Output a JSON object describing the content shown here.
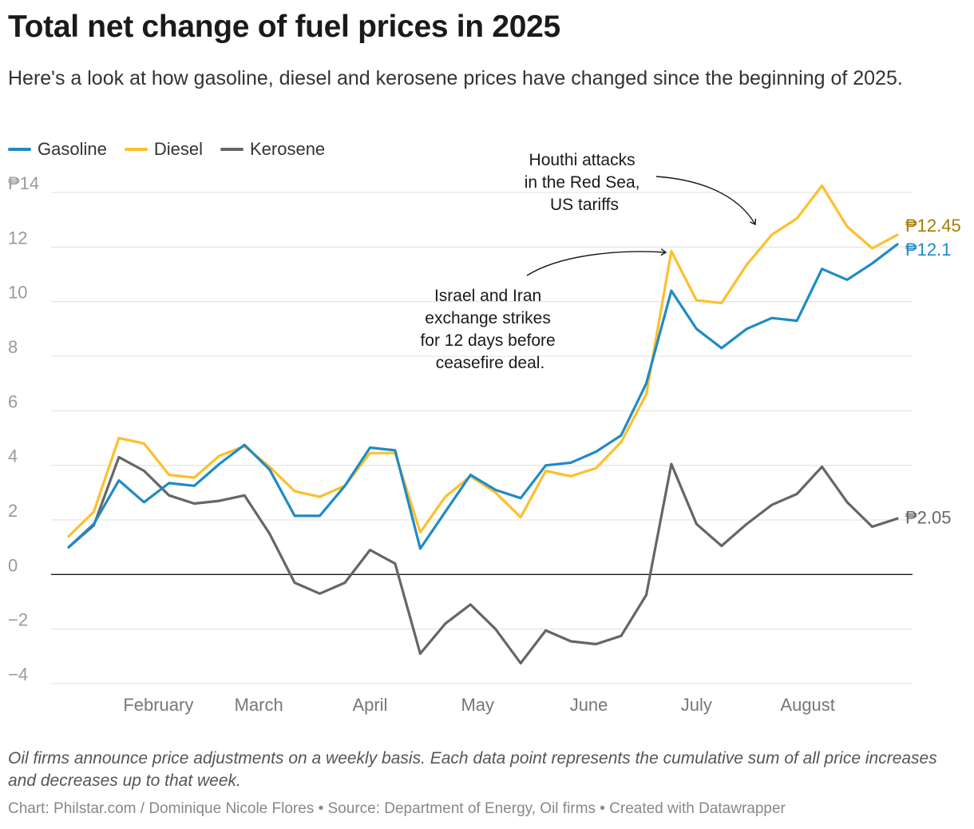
{
  "title": "Total net change of fuel prices in 2025",
  "subtitle": "Here's a look at how gasoline, diesel and kerosene prices have changed since the beginning of 2025.",
  "notes": "Oil firms announce price adjustments on a weekly basis. Each data point represents the cumulative sum of all price increases and decreases up to that week.",
  "credits": "Chart: Philstar.com / Dominique Nicole Flores • Source: Department of Energy, Oil firms • Created with Datawrapper",
  "chart_data": {
    "type": "line",
    "x": [
      "2025-01-07",
      "2025-01-14",
      "2025-01-21",
      "2025-01-28",
      "2025-02-04",
      "2025-02-11",
      "2025-02-18",
      "2025-02-25",
      "2025-03-04",
      "2025-03-11",
      "2025-03-18",
      "2025-03-25",
      "2025-04-01",
      "2025-04-08",
      "2025-04-15",
      "2025-04-22",
      "2025-04-29",
      "2025-05-06",
      "2025-05-13",
      "2025-05-20",
      "2025-05-27",
      "2025-06-03",
      "2025-06-10",
      "2025-06-17",
      "2025-06-24",
      "2025-07-01",
      "2025-07-08",
      "2025-07-15",
      "2025-07-22",
      "2025-07-29",
      "2025-08-05",
      "2025-08-12",
      "2025-08-19",
      "2025-08-26"
    ],
    "series": [
      {
        "name": "Gasoline",
        "color": "#1f8bc4",
        "values": [
          1.0,
          1.85,
          3.45,
          2.65,
          3.35,
          3.25,
          4.05,
          4.75,
          3.85,
          2.15,
          2.15,
          3.25,
          4.65,
          4.55,
          0.95,
          2.3,
          3.65,
          3.1,
          2.8,
          4.0,
          4.1,
          4.5,
          5.1,
          7.0,
          10.4,
          9.0,
          8.3,
          9.0,
          9.4,
          9.3,
          11.2,
          10.8,
          11.4,
          12.1
        ]
      },
      {
        "name": "Diesel",
        "color": "#fdbf2d",
        "values": [
          1.4,
          2.3,
          5.0,
          4.8,
          3.65,
          3.55,
          4.35,
          4.7,
          3.95,
          3.05,
          2.85,
          3.25,
          4.45,
          4.45,
          1.55,
          2.85,
          3.6,
          3.0,
          2.1,
          3.8,
          3.6,
          3.9,
          4.85,
          6.6,
          11.85,
          10.05,
          9.95,
          11.35,
          12.45,
          13.05,
          14.25,
          12.75,
          11.95,
          12.45
        ]
      },
      {
        "name": "Kerosene",
        "color": "#666666",
        "values": [
          1.0,
          1.8,
          4.3,
          3.8,
          2.9,
          2.6,
          2.7,
          2.9,
          1.5,
          -0.3,
          -0.7,
          -0.3,
          0.9,
          0.4,
          -2.9,
          -1.8,
          -1.1,
          -2.0,
          -3.25,
          -2.05,
          -2.45,
          -2.55,
          -2.25,
          -0.75,
          4.05,
          1.85,
          1.05,
          1.85,
          2.55,
          2.95,
          3.95,
          2.65,
          1.75,
          2.05
        ]
      }
    ],
    "yticks": [
      14,
      12,
      10,
      8,
      6,
      4,
      2,
      0,
      -2,
      -4
    ],
    "ytick_labels": [
      "₱14",
      "12",
      "10",
      "8",
      "6",
      "4",
      "2",
      "0",
      "−2",
      "−4"
    ],
    "ylim": [
      -4,
      14
    ],
    "x_ticks": [
      {
        "label": "February",
        "date": "2025-02-01"
      },
      {
        "label": "March",
        "date": "2025-03-01"
      },
      {
        "label": "April",
        "date": "2025-04-01"
      },
      {
        "label": "May",
        "date": "2025-05-01"
      },
      {
        "label": "June",
        "date": "2025-06-01"
      },
      {
        "label": "July",
        "date": "2025-07-01"
      },
      {
        "label": "August",
        "date": "2025-08-01"
      }
    ],
    "end_labels": [
      {
        "series": "Diesel",
        "text": "₱12.45",
        "color": "#a87a00"
      },
      {
        "series": "Gasoline",
        "text": "₱12.1",
        "color": "#1f8bc4"
      },
      {
        "series": "Kerosene",
        "text": "₱2.05",
        "color": "#666666"
      }
    ],
    "annotations": [
      {
        "lines": [
          "Houthi attacks",
          "in the Red Sea,",
          "US tariffs"
        ]
      },
      {
        "lines": [
          "Israel and Iran",
          "exchange strikes",
          "for 12 days before",
          "ceasefire deal."
        ]
      }
    ],
    "grid": true,
    "legend_position": "top-left"
  }
}
